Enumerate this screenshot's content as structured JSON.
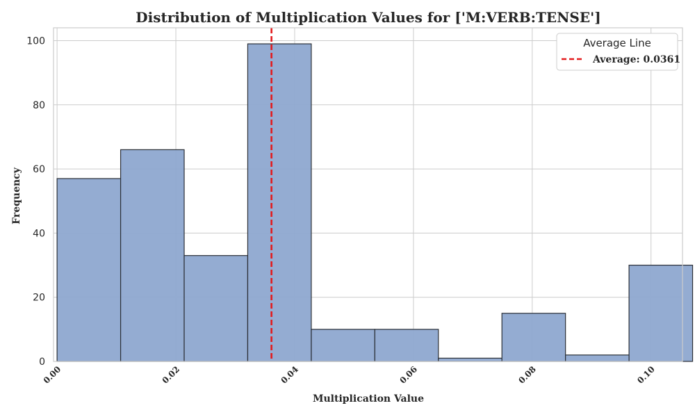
{
  "chart_data": {
    "type": "bar",
    "subtype": "histogram",
    "title": "Distribution of Multiplication Values for ['M:VERB:TENSE']",
    "xlabel": "Multiplication Value",
    "ylabel": "Frequency",
    "xlim": [
      -0.0006,
      0.1053
    ],
    "ylim": [
      0,
      104
    ],
    "xticks": [
      0.0,
      0.02,
      0.04,
      0.06,
      0.08,
      0.1
    ],
    "xtick_labels": [
      "0.00",
      "0.02",
      "0.04",
      "0.06",
      "0.08",
      "0.10"
    ],
    "yticks": [
      0,
      20,
      40,
      60,
      80,
      100
    ],
    "ytick_labels": [
      "0",
      "20",
      "40",
      "60",
      "80",
      "100"
    ],
    "bin_edges": [
      0.0,
      0.0107,
      0.0214,
      0.0321,
      0.0428,
      0.0535,
      0.0642,
      0.0749,
      0.0856,
      0.0963,
      0.107
    ],
    "counts": [
      57,
      66,
      33,
      99,
      10,
      10,
      1,
      15,
      2,
      30
    ],
    "average": 0.0361,
    "grid": true,
    "legend": {
      "title": "Average Line",
      "entries": [
        "Average: 0.0361"
      ],
      "placement": "top-right"
    },
    "colors": {
      "bar_fill": "#8ea8d0",
      "bar_edge": "#2b2f36",
      "average_line": "#e31a1c",
      "grid": "#cccccc",
      "frame": "#cccccc"
    }
  }
}
